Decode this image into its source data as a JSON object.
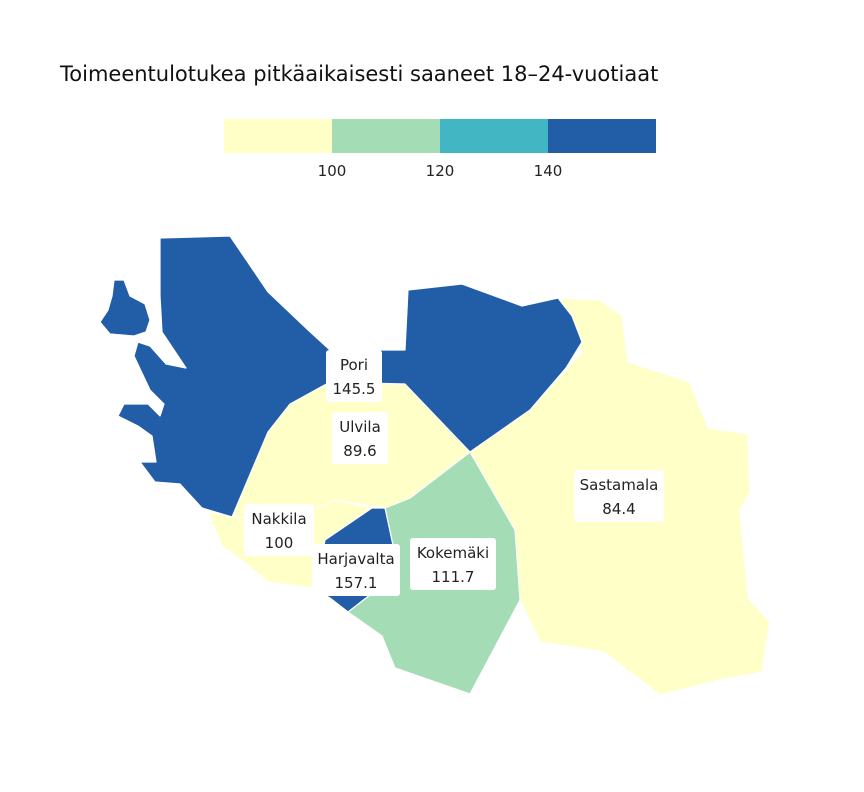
{
  "title": "Toimeentulotukea pitkäaikaisesti saaneet 18–24-vuotiaat",
  "legend": {
    "colors": [
      "#ffffc8",
      "#a4dcb5",
      "#43b6c4",
      "#225ea8"
    ],
    "ticks": [
      "100",
      "120",
      "140"
    ]
  },
  "regions": [
    {
      "id": "pori",
      "name": "Pori",
      "value": "145.5",
      "color": "#225ea8"
    },
    {
      "id": "ulvila",
      "name": "Ulvila",
      "value": "89.6",
      "color": "#ffffc8"
    },
    {
      "id": "nakkila",
      "name": "Nakkila",
      "value": "100",
      "color": "#ffffc8"
    },
    {
      "id": "harjavalta",
      "name": "Harjavalta",
      "value": "157.1",
      "color": "#225ea8"
    },
    {
      "id": "kokemaki",
      "name": "Kokemäki",
      "value": "111.7",
      "color": "#a4dcb5"
    },
    {
      "id": "sastamala",
      "name": "Sastamala",
      "value": "84.4",
      "color": "#ffffc8"
    }
  ]
}
